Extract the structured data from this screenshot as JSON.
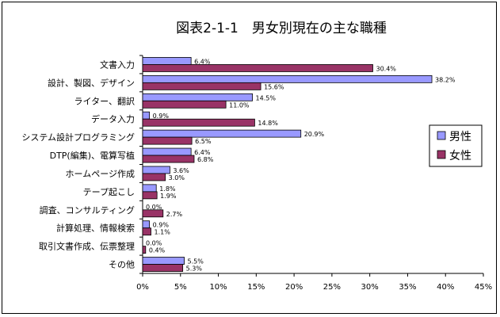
{
  "chart_data": {
    "type": "bar",
    "orientation": "horizontal",
    "title": "図表2-1-1　男女別現在の主な職種",
    "xlabel": "",
    "ylabel": "",
    "xlim": [
      0,
      45
    ],
    "ticks": [
      "0%",
      "5%",
      "10%",
      "15%",
      "20%",
      "25%",
      "30%",
      "35%",
      "40%",
      "45%"
    ],
    "tick_values": [
      0,
      5,
      10,
      15,
      20,
      25,
      30,
      35,
      40,
      45
    ],
    "grid": false,
    "legend_position": "right",
    "categories": [
      "文書入力",
      "設計、製図、デザイン",
      "ライター、翻訳",
      "データ入力",
      "システム設計プログラミング",
      "DTP(編集)、電算写植",
      "ホームページ作成",
      "テープ起こし",
      "調査、コンサルティング",
      "計算処理、情報検索",
      "取引文書作成、伝票整理",
      "その他"
    ],
    "series": [
      {
        "name": "男性",
        "color": "#9999ff",
        "values": [
          6.4,
          38.2,
          14.5,
          0.9,
          20.9,
          6.4,
          3.6,
          1.8,
          0.0,
          0.9,
          0.0,
          5.5
        ],
        "labels": [
          "6.4%",
          "38.2%",
          "14.5%",
          "0.9%",
          "20.9%",
          "6.4%",
          "3.6%",
          "1.8%",
          "0.0%",
          "0.9%",
          "0.0%",
          "5.5%"
        ]
      },
      {
        "name": "女性",
        "color": "#993366",
        "values": [
          30.4,
          15.6,
          11.0,
          14.8,
          6.5,
          6.8,
          3.0,
          1.9,
          2.7,
          1.1,
          0.4,
          5.3
        ],
        "labels": [
          "30.4%",
          "15.6%",
          "11.0%",
          "14.8%",
          "6.5%",
          "6.8%",
          "3.0%",
          "1.9%",
          "2.7%",
          "1.1%",
          "0.4%",
          "5.3%"
        ]
      }
    ]
  }
}
